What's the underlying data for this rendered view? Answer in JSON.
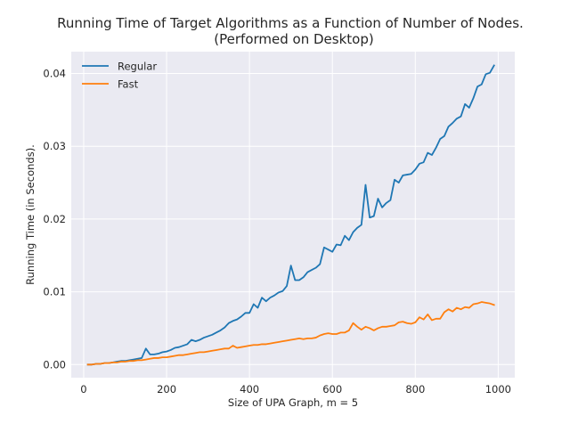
{
  "chart_data": {
    "type": "line",
    "title": "Running Time of Target Algorithms as a Function of Number of Nodes.",
    "subtitle": "(Performed on Desktop)",
    "xlabel": "Size of UPA Graph, m = 5",
    "ylabel": "Running Time (in Seconds).",
    "xlim": [
      -30,
      1040
    ],
    "ylim": [
      -0.0018,
      0.043
    ],
    "xticks": [
      0,
      200,
      400,
      600,
      800,
      1000
    ],
    "yticks": [
      0.0,
      0.01,
      0.02,
      0.03,
      0.04
    ],
    "xtick_labels": [
      "0",
      "200",
      "400",
      "600",
      "800",
      "1000"
    ],
    "ytick_labels": [
      "0.00",
      "0.01",
      "0.02",
      "0.03",
      "0.04"
    ],
    "grid": true,
    "legend_position": "top-left",
    "series": [
      {
        "name": "Regular",
        "color": "#1f77b4",
        "points": [
          [
            10,
            0.0
          ],
          [
            20,
            0.0
          ],
          [
            30,
            0.0001
          ],
          [
            40,
            0.0001
          ],
          [
            50,
            0.0002
          ],
          [
            60,
            0.0002
          ],
          [
            70,
            0.0003
          ],
          [
            80,
            0.0004
          ],
          [
            90,
            0.0005
          ],
          [
            100,
            0.0005
          ],
          [
            110,
            0.0006
          ],
          [
            120,
            0.0007
          ],
          [
            130,
            0.0008
          ],
          [
            140,
            0.0009
          ],
          [
            150,
            0.0022
          ],
          [
            160,
            0.0014
          ],
          [
            170,
            0.0014
          ],
          [
            180,
            0.0015
          ],
          [
            190,
            0.0017
          ],
          [
            200,
            0.0018
          ],
          [
            210,
            0.002
          ],
          [
            220,
            0.0023
          ],
          [
            230,
            0.0024
          ],
          [
            240,
            0.0026
          ],
          [
            250,
            0.0028
          ],
          [
            260,
            0.0034
          ],
          [
            270,
            0.0032
          ],
          [
            280,
            0.0034
          ],
          [
            290,
            0.0037
          ],
          [
            300,
            0.0039
          ],
          [
            310,
            0.0041
          ],
          [
            320,
            0.0044
          ],
          [
            330,
            0.0047
          ],
          [
            340,
            0.0051
          ],
          [
            350,
            0.0057
          ],
          [
            360,
            0.006
          ],
          [
            370,
            0.0062
          ],
          [
            380,
            0.0066
          ],
          [
            390,
            0.0071
          ],
          [
            400,
            0.0071
          ],
          [
            410,
            0.0083
          ],
          [
            420,
            0.0078
          ],
          [
            430,
            0.0092
          ],
          [
            440,
            0.0087
          ],
          [
            450,
            0.0092
          ],
          [
            460,
            0.0095
          ],
          [
            470,
            0.0099
          ],
          [
            480,
            0.0101
          ],
          [
            490,
            0.0108
          ],
          [
            500,
            0.0136
          ],
          [
            510,
            0.0116
          ],
          [
            520,
            0.0116
          ],
          [
            530,
            0.012
          ],
          [
            540,
            0.0127
          ],
          [
            550,
            0.013
          ],
          [
            560,
            0.0133
          ],
          [
            570,
            0.0138
          ],
          [
            580,
            0.0161
          ],
          [
            590,
            0.0158
          ],
          [
            600,
            0.0155
          ],
          [
            610,
            0.0165
          ],
          [
            620,
            0.0164
          ],
          [
            630,
            0.0177
          ],
          [
            640,
            0.0171
          ],
          [
            650,
            0.0182
          ],
          [
            660,
            0.0188
          ],
          [
            670,
            0.0192
          ],
          [
            680,
            0.0247
          ],
          [
            690,
            0.0202
          ],
          [
            700,
            0.0204
          ],
          [
            710,
            0.0228
          ],
          [
            720,
            0.0216
          ],
          [
            730,
            0.0222
          ],
          [
            740,
            0.0226
          ],
          [
            750,
            0.0254
          ],
          [
            760,
            0.025
          ],
          [
            770,
            0.026
          ],
          [
            780,
            0.0261
          ],
          [
            790,
            0.0262
          ],
          [
            800,
            0.0268
          ],
          [
            810,
            0.0276
          ],
          [
            820,
            0.0278
          ],
          [
            830,
            0.0291
          ],
          [
            840,
            0.0288
          ],
          [
            850,
            0.0298
          ],
          [
            860,
            0.031
          ],
          [
            870,
            0.0314
          ],
          [
            880,
            0.0327
          ],
          [
            890,
            0.0332
          ],
          [
            900,
            0.0338
          ],
          [
            910,
            0.0341
          ],
          [
            920,
            0.0358
          ],
          [
            930,
            0.0353
          ],
          [
            940,
            0.0366
          ],
          [
            950,
            0.0382
          ],
          [
            960,
            0.0385
          ],
          [
            970,
            0.0399
          ],
          [
            980,
            0.0401
          ],
          [
            990,
            0.0411
          ]
        ]
      },
      {
        "name": "Fast",
        "color": "#ff7f0e",
        "points": [
          [
            10,
            0.0
          ],
          [
            20,
            0.0
          ],
          [
            30,
            0.0001
          ],
          [
            40,
            0.0001
          ],
          [
            50,
            0.0002
          ],
          [
            60,
            0.0002
          ],
          [
            70,
            0.0003
          ],
          [
            80,
            0.0003
          ],
          [
            90,
            0.0004
          ],
          [
            100,
            0.0004
          ],
          [
            110,
            0.0005
          ],
          [
            120,
            0.0005
          ],
          [
            130,
            0.0006
          ],
          [
            140,
            0.0006
          ],
          [
            150,
            0.0007
          ],
          [
            160,
            0.0008
          ],
          [
            170,
            0.0009
          ],
          [
            180,
            0.0009
          ],
          [
            190,
            0.001
          ],
          [
            200,
            0.001
          ],
          [
            210,
            0.0011
          ],
          [
            220,
            0.0012
          ],
          [
            230,
            0.0013
          ],
          [
            240,
            0.0013
          ],
          [
            250,
            0.0014
          ],
          [
            260,
            0.0015
          ],
          [
            270,
            0.0016
          ],
          [
            280,
            0.0017
          ],
          [
            290,
            0.0017
          ],
          [
            300,
            0.0018
          ],
          [
            310,
            0.0019
          ],
          [
            320,
            0.002
          ],
          [
            330,
            0.0021
          ],
          [
            340,
            0.0022
          ],
          [
            350,
            0.0022
          ],
          [
            360,
            0.0026
          ],
          [
            370,
            0.0023
          ],
          [
            380,
            0.0024
          ],
          [
            390,
            0.0025
          ],
          [
            400,
            0.0026
          ],
          [
            410,
            0.0027
          ],
          [
            420,
            0.0027
          ],
          [
            430,
            0.0028
          ],
          [
            440,
            0.0028
          ],
          [
            450,
            0.0029
          ],
          [
            460,
            0.003
          ],
          [
            470,
            0.0031
          ],
          [
            480,
            0.0032
          ],
          [
            490,
            0.0033
          ],
          [
            500,
            0.0034
          ],
          [
            510,
            0.0035
          ],
          [
            520,
            0.0036
          ],
          [
            530,
            0.0035
          ],
          [
            540,
            0.0036
          ],
          [
            550,
            0.0036
          ],
          [
            560,
            0.0037
          ],
          [
            570,
            0.004
          ],
          [
            580,
            0.0042
          ],
          [
            590,
            0.0043
          ],
          [
            600,
            0.0042
          ],
          [
            610,
            0.0042
          ],
          [
            620,
            0.0044
          ],
          [
            630,
            0.0044
          ],
          [
            640,
            0.0047
          ],
          [
            650,
            0.0057
          ],
          [
            660,
            0.0052
          ],
          [
            670,
            0.0048
          ],
          [
            680,
            0.0052
          ],
          [
            690,
            0.005
          ],
          [
            700,
            0.0047
          ],
          [
            710,
            0.005
          ],
          [
            720,
            0.0052
          ],
          [
            730,
            0.0052
          ],
          [
            740,
            0.0053
          ],
          [
            750,
            0.0054
          ],
          [
            760,
            0.0058
          ],
          [
            770,
            0.0059
          ],
          [
            780,
            0.0057
          ],
          [
            790,
            0.0056
          ],
          [
            800,
            0.0058
          ],
          [
            810,
            0.0065
          ],
          [
            820,
            0.0062
          ],
          [
            830,
            0.0069
          ],
          [
            840,
            0.0061
          ],
          [
            850,
            0.0063
          ],
          [
            860,
            0.0063
          ],
          [
            870,
            0.0072
          ],
          [
            880,
            0.0076
          ],
          [
            890,
            0.0073
          ],
          [
            900,
            0.0078
          ],
          [
            910,
            0.0076
          ],
          [
            920,
            0.0079
          ],
          [
            930,
            0.0078
          ],
          [
            940,
            0.0083
          ],
          [
            950,
            0.0084
          ],
          [
            960,
            0.0086
          ],
          [
            970,
            0.0085
          ],
          [
            980,
            0.0084
          ],
          [
            990,
            0.0082
          ]
        ]
      }
    ]
  }
}
